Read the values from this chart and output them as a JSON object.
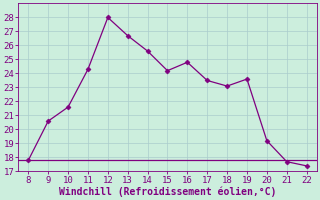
{
  "x": [
    8,
    9,
    10,
    11,
    12,
    13,
    14,
    15,
    16,
    17,
    18,
    19,
    20,
    21,
    22
  ],
  "y": [
    17.8,
    20.6,
    21.6,
    24.3,
    28.0,
    26.7,
    25.6,
    24.2,
    24.8,
    23.5,
    23.1,
    23.6,
    19.2,
    17.7,
    17.4
  ],
  "hline_y": 17.8,
  "line_color": "#800080",
  "bg_color": "#cceedd",
  "grid_color": "#aacccc",
  "xlabel": "Windchill (Refroidissement éolien,°C)",
  "ylim": [
    17,
    29
  ],
  "xlim": [
    7.5,
    22.5
  ],
  "yticks": [
    17,
    18,
    19,
    20,
    21,
    22,
    23,
    24,
    25,
    26,
    27,
    28
  ],
  "xticks": [
    8,
    9,
    10,
    11,
    12,
    13,
    14,
    15,
    16,
    17,
    18,
    19,
    20,
    21,
    22
  ],
  "marker": "D",
  "marker_size": 2.5,
  "line_width": 0.9,
  "xlabel_color": "#800080",
  "xlabel_fontsize": 7,
  "tick_fontsize": 6.5
}
